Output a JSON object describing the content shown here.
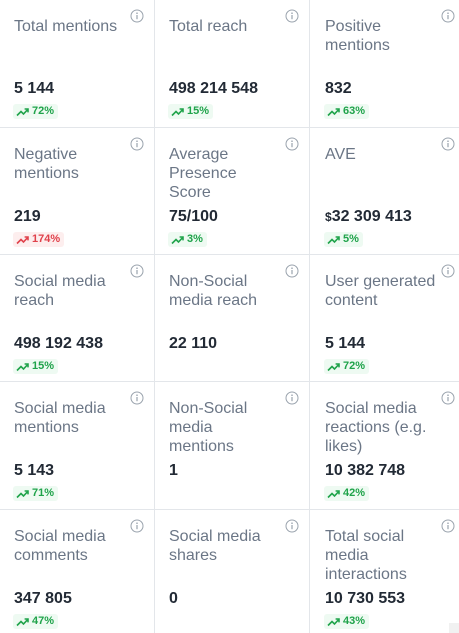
{
  "metrics": [
    {
      "label": "Total mentions",
      "value": "5 144",
      "change": "72%",
      "trend": "up"
    },
    {
      "label": "Total reach",
      "value": "498 214 548",
      "change": "15%",
      "trend": "up"
    },
    {
      "label": "Positive mentions",
      "value": "832",
      "change": "63%",
      "trend": "up"
    },
    {
      "label": "Negative mentions",
      "value": "219",
      "change": "174%",
      "trend": "down"
    },
    {
      "label": "Average Presence Score",
      "value": "75/100",
      "change": "3%",
      "trend": "up"
    },
    {
      "label": "AVE",
      "currency": "$",
      "value": "32 309 413",
      "change": "5%",
      "trend": "up"
    },
    {
      "label": "Social media reach",
      "value": "498 192 438",
      "change": "15%",
      "trend": "up"
    },
    {
      "label": "Non-Social media reach",
      "value": "22 110",
      "change": "",
      "trend": ""
    },
    {
      "label": "User generated content",
      "value": "5 144",
      "change": "72%",
      "trend": "up"
    },
    {
      "label": "Social media mentions",
      "value": "5 143",
      "change": "71%",
      "trend": "up"
    },
    {
      "label": "Non-Social media mentions",
      "value": "1",
      "change": "",
      "trend": ""
    },
    {
      "label": "Social media reactions (e.g. likes)",
      "value": "10 382 748",
      "change": "42%",
      "trend": "up"
    },
    {
      "label": "Social media comments",
      "value": "347 805",
      "change": "47%",
      "trend": "up"
    },
    {
      "label": "Social media shares",
      "value": "0",
      "change": "",
      "trend": ""
    },
    {
      "label": "Total social media interactions",
      "value": "10 730 553",
      "change": "43%",
      "trend": "up"
    }
  ],
  "colors": {
    "label": "#6b7686",
    "value": "#222a35",
    "positive": "#1fa34a",
    "positive_bg": "#eefaf2",
    "negative": "#e0414b",
    "negative_bg": "#fdeeee",
    "divider": "#e3e6ea",
    "info_icon": "#9aa3ad"
  },
  "icons": {
    "info": "info-circle-icon",
    "trend_up": "trending-up-icon",
    "trend_down": "trending-up-icon"
  }
}
